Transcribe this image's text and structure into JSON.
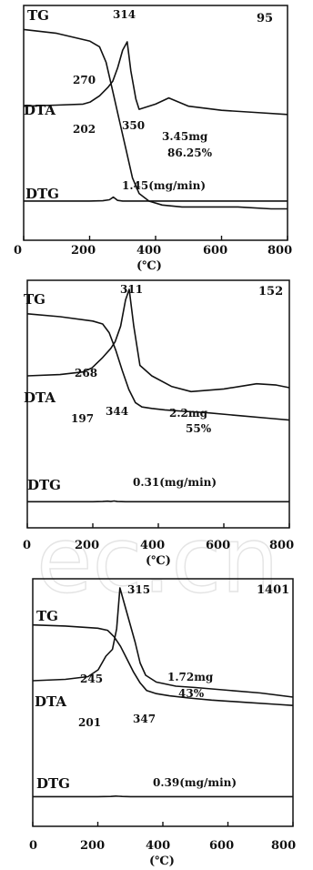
{
  "chart_data": [
    {
      "type": "line",
      "corner_label": "95",
      "xlim": [
        0,
        800
      ],
      "xticks": [
        "0",
        "200",
        "400",
        "600",
        "800"
      ],
      "xunit": "(℃)",
      "grid": false,
      "curves": [
        {
          "name": "TG",
          "x": [
            0,
            100,
            200,
            230,
            250,
            270,
            290,
            310,
            330,
            350,
            380,
            420,
            480,
            550,
            650,
            750,
            800
          ],
          "y": [
            0.97,
            0.95,
            0.91,
            0.88,
            0.8,
            0.65,
            0.5,
            0.35,
            0.2,
            0.12,
            0.08,
            0.06,
            0.05,
            0.05,
            0.05,
            0.04,
            0.04
          ]
        },
        {
          "name": "DTA",
          "x": [
            0,
            100,
            180,
            202,
            230,
            255,
            270,
            285,
            300,
            314,
            325,
            340,
            350,
            400,
            440,
            500,
            600,
            700,
            800
          ],
          "y": [
            0.38,
            0.39,
            0.4,
            0.42,
            0.48,
            0.56,
            0.62,
            0.75,
            0.92,
            1.0,
            0.72,
            0.45,
            0.35,
            0.4,
            0.46,
            0.38,
            0.34,
            0.32,
            0.3
          ]
        },
        {
          "name": "DTG",
          "x": [
            0,
            200,
            240,
            260,
            272,
            285,
            300,
            400,
            500,
            600,
            700,
            800
          ],
          "y": [
            0.03,
            0.03,
            0.04,
            0.07,
            0.15,
            0.05,
            0.03,
            0.03,
            0.03,
            0.03,
            0.03,
            0.03
          ]
        }
      ],
      "annotations": [
        {
          "text": "314",
          "x": 314
        },
        {
          "text": "270",
          "x": 270
        },
        {
          "text": "202",
          "x": 202
        },
        {
          "text": "350",
          "x": 350
        },
        {
          "text": "3.45mg",
          "x": 460
        },
        {
          "text": "86.25%",
          "x": 460
        },
        {
          "text": "1.45(mg/min)",
          "x": 420
        }
      ]
    },
    {
      "type": "line",
      "corner_label": "152",
      "xlim": [
        0,
        800
      ],
      "xticks": [
        "0",
        "200",
        "400",
        "600",
        "800"
      ],
      "xunit": "(℃)",
      "grid": false,
      "curves": [
        {
          "name": "TG",
          "x": [
            0,
            100,
            200,
            230,
            250,
            270,
            290,
            310,
            330,
            350,
            380,
            420,
            480,
            550,
            650,
            750,
            800
          ],
          "y": [
            0.97,
            0.95,
            0.92,
            0.9,
            0.84,
            0.72,
            0.58,
            0.45,
            0.36,
            0.33,
            0.32,
            0.31,
            0.3,
            0.29,
            0.27,
            0.25,
            0.24
          ]
        },
        {
          "name": "DTA",
          "x": [
            0,
            100,
            170,
            197,
            230,
            255,
            268,
            285,
            300,
            311,
            325,
            344,
            380,
            440,
            500,
            600,
            700,
            760,
            800
          ],
          "y": [
            0.34,
            0.35,
            0.37,
            0.4,
            0.48,
            0.55,
            0.6,
            0.72,
            0.92,
            1.0,
            0.72,
            0.42,
            0.34,
            0.26,
            0.22,
            0.24,
            0.28,
            0.27,
            0.25
          ]
        },
        {
          "name": "DTG",
          "x": [
            0,
            200,
            230,
            245,
            255,
            265,
            275,
            300,
            400,
            500,
            600,
            700,
            800
          ],
          "y": [
            0.03,
            0.03,
            0.04,
            0.06,
            0.04,
            0.07,
            0.04,
            0.03,
            0.03,
            0.03,
            0.03,
            0.03,
            0.03
          ]
        }
      ],
      "annotations": [
        {
          "text": "311",
          "x": 311
        },
        {
          "text": "268",
          "x": 268
        },
        {
          "text": "197",
          "x": 197
        },
        {
          "text": "344",
          "x": 344
        },
        {
          "text": "2.2mg",
          "x": 480
        },
        {
          "text": "55%",
          "x": 480
        },
        {
          "text": "0.31(mg/min)",
          "x": 430
        }
      ]
    },
    {
      "type": "line",
      "corner_label": "1401",
      "xlim": [
        0,
        800
      ],
      "xticks": [
        "0",
        "200",
        "400",
        "600",
        "800"
      ],
      "xunit": "(℃)",
      "grid": false,
      "curves": [
        {
          "name": "TG",
          "x": [
            0,
            100,
            200,
            230,
            250,
            270,
            290,
            310,
            330,
            350,
            380,
            420,
            480,
            550,
            650,
            750,
            800
          ],
          "y": [
            0.96,
            0.95,
            0.93,
            0.91,
            0.85,
            0.76,
            0.64,
            0.52,
            0.42,
            0.35,
            0.32,
            0.3,
            0.28,
            0.26,
            0.24,
            0.22,
            0.21
          ]
        },
        {
          "name": "DTA",
          "x": [
            0,
            100,
            170,
            201,
            225,
            245,
            258,
            268,
            315,
            330,
            347,
            380,
            440,
            500,
            600,
            700,
            800
          ],
          "y": [
            0.32,
            0.33,
            0.35,
            0.4,
            0.5,
            0.55,
            0.7,
            1.0,
            0.6,
            0.45,
            0.36,
            0.31,
            0.28,
            0.27,
            0.25,
            0.23,
            0.2
          ]
        },
        {
          "name": "DTG",
          "x": [
            0,
            200,
            240,
            255,
            265,
            275,
            300,
            400,
            500,
            600,
            700,
            800
          ],
          "y": [
            0.03,
            0.03,
            0.04,
            0.06,
            0.05,
            0.04,
            0.03,
            0.03,
            0.03,
            0.03,
            0.03,
            0.03
          ]
        }
      ],
      "annotations": [
        {
          "text": "315",
          "x": 315
        },
        {
          "text": "245",
          "x": 245
        },
        {
          "text": "201",
          "x": 201
        },
        {
          "text": "347",
          "x": 347
        },
        {
          "text": "1.72mg",
          "x": 520
        },
        {
          "text": "43%",
          "x": 520
        },
        {
          "text": "0.39(mg/min)",
          "x": 450
        }
      ]
    }
  ]
}
